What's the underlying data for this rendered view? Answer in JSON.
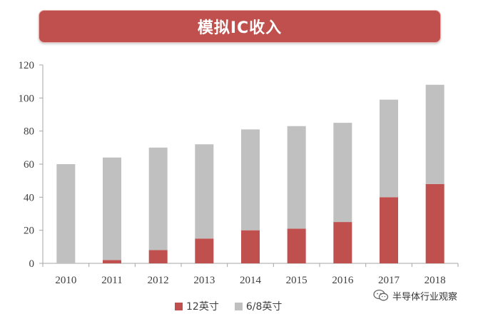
{
  "colors": {
    "banner": "#c0504d",
    "series_12inch": "#c0504d",
    "series_68inch": "#c0c0c0",
    "axis": "#a6a6a6",
    "text": "#404040"
  },
  "watermark": {
    "text": "半导体行业观察",
    "icon": "wechat-icon"
  },
  "chart_data": {
    "type": "bar",
    "stacked": true,
    "title": "模拟IC收入",
    "xlabel": "",
    "ylabel": "",
    "categories": [
      "2010",
      "2011",
      "2012",
      "2013",
      "2014",
      "2015",
      "2016",
      "2017",
      "2018"
    ],
    "series": [
      {
        "name": "12英寸",
        "color": "#c0504d",
        "values": [
          0,
          2,
          8,
          15,
          20,
          21,
          25,
          40,
          48
        ]
      },
      {
        "name": "6/8英寸",
        "color": "#c0c0c0",
        "values": [
          60,
          62,
          62,
          57,
          61,
          62,
          60,
          59,
          60
        ]
      }
    ],
    "ylim": [
      0,
      120
    ],
    "yticks": [
      0,
      20,
      40,
      60,
      80,
      100,
      120
    ],
    "grid": false,
    "legend": "bottom"
  }
}
